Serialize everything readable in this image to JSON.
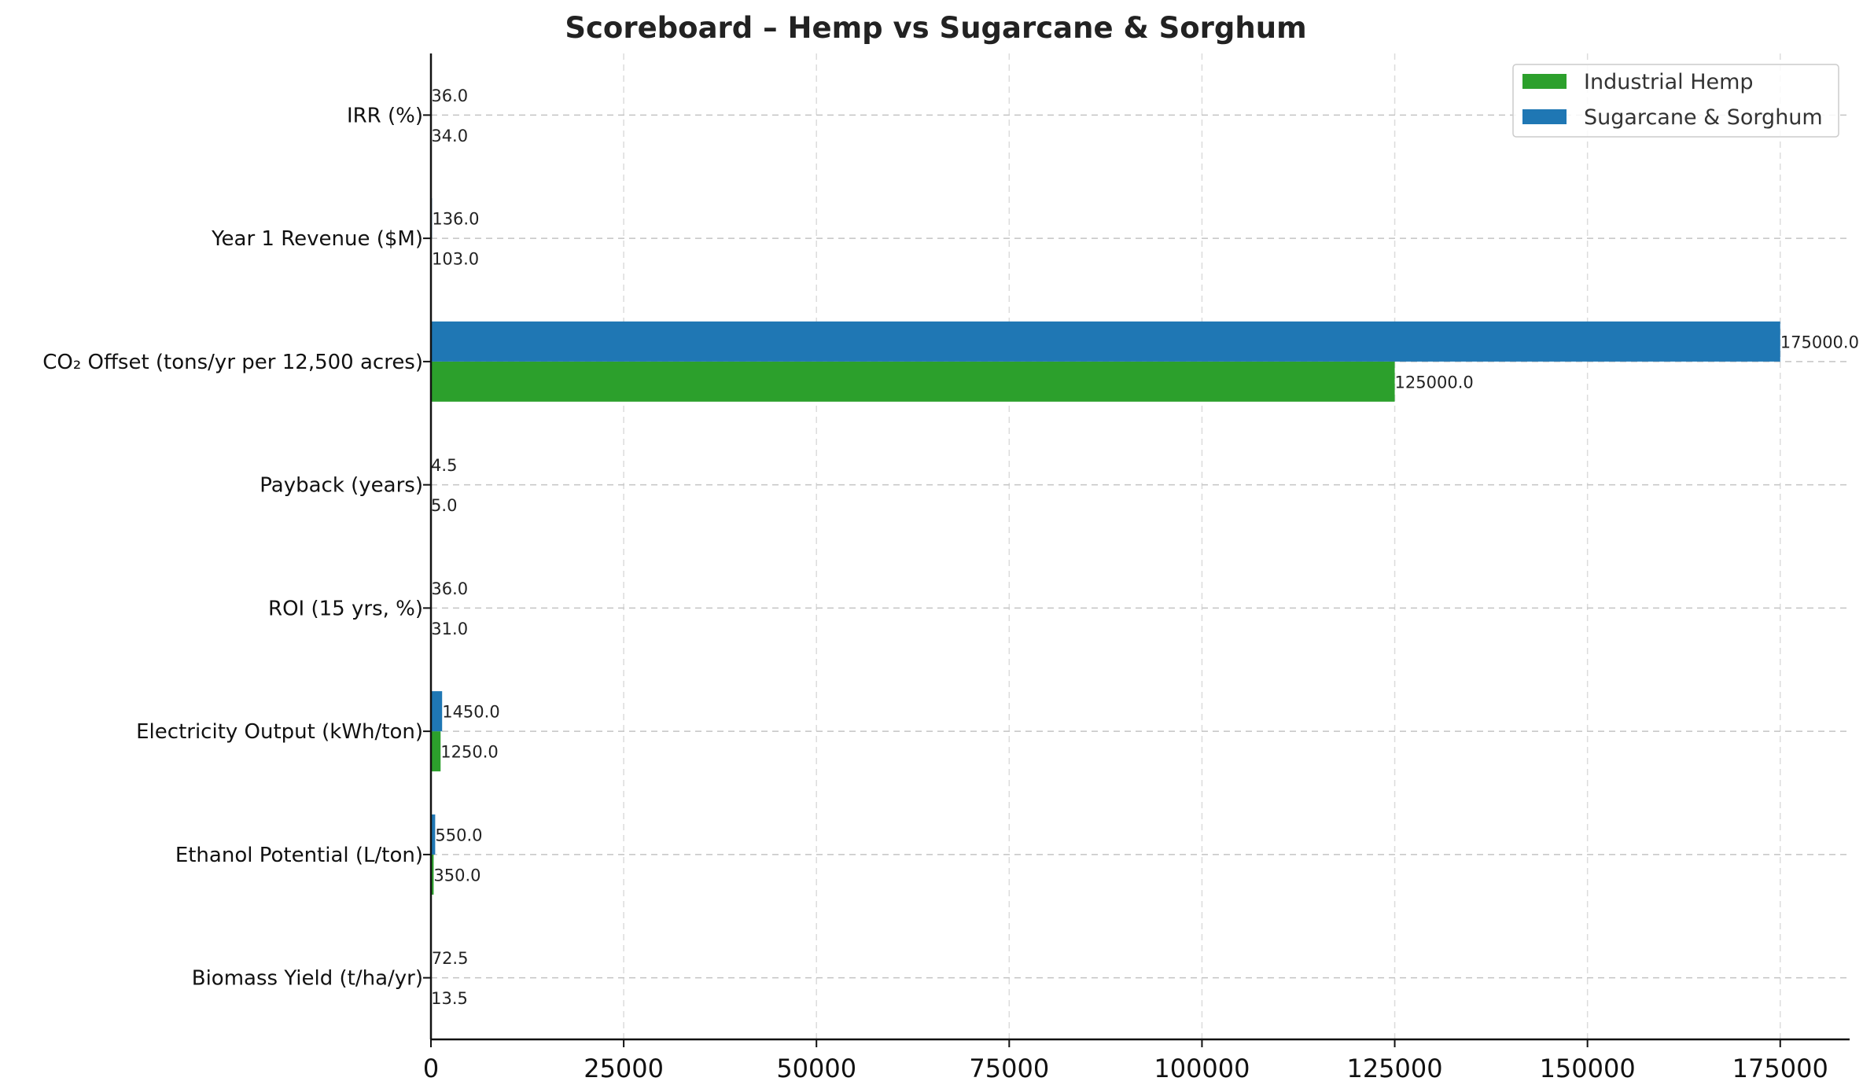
{
  "chart_data": {
    "type": "bar",
    "orientation": "horizontal",
    "title": "Scoreboard – Hemp vs Sugarcane & Sorghum",
    "xlabel": "",
    "ylabel": "",
    "xlim": [
      0,
      184000
    ],
    "xticks": [
      0,
      25000,
      50000,
      75000,
      100000,
      125000,
      150000,
      175000
    ],
    "xtick_labels": [
      "0",
      "25000",
      "50000",
      "75000",
      "100000",
      "125000",
      "150000",
      "175000"
    ],
    "categories": [
      "Biomass Yield (t/ha/yr)",
      "Ethanol Potential (L/ton)",
      "Electricity Output (kWh/ton)",
      "ROI (15 yrs, %)",
      "Payback (years)",
      "CO₂ Offset (tons/yr per 12,500 acres)",
      "Year 1 Revenue ($M)",
      "IRR (%)"
    ],
    "series": [
      {
        "name": "Industrial Hemp",
        "color": "#2ca02c",
        "values": [
          13.5,
          350,
          1250,
          31,
          5,
          125000,
          103,
          34
        ],
        "labels": [
          "13.5",
          "350.0",
          "1250.0",
          "31.0",
          "5.0",
          "125000.0",
          "103.0",
          "34.0"
        ]
      },
      {
        "name": "Sugarcane & Sorghum",
        "color": "#1f77b4",
        "values": [
          72.5,
          550,
          1450,
          36,
          4.5,
          175000,
          136,
          36
        ],
        "labels": [
          "72.5",
          "550.0",
          "1450.0",
          "36.0",
          "4.5",
          "175000.0",
          "136.0",
          "36.0"
        ]
      }
    ],
    "grid": true,
    "legend_position": "top-right"
  }
}
